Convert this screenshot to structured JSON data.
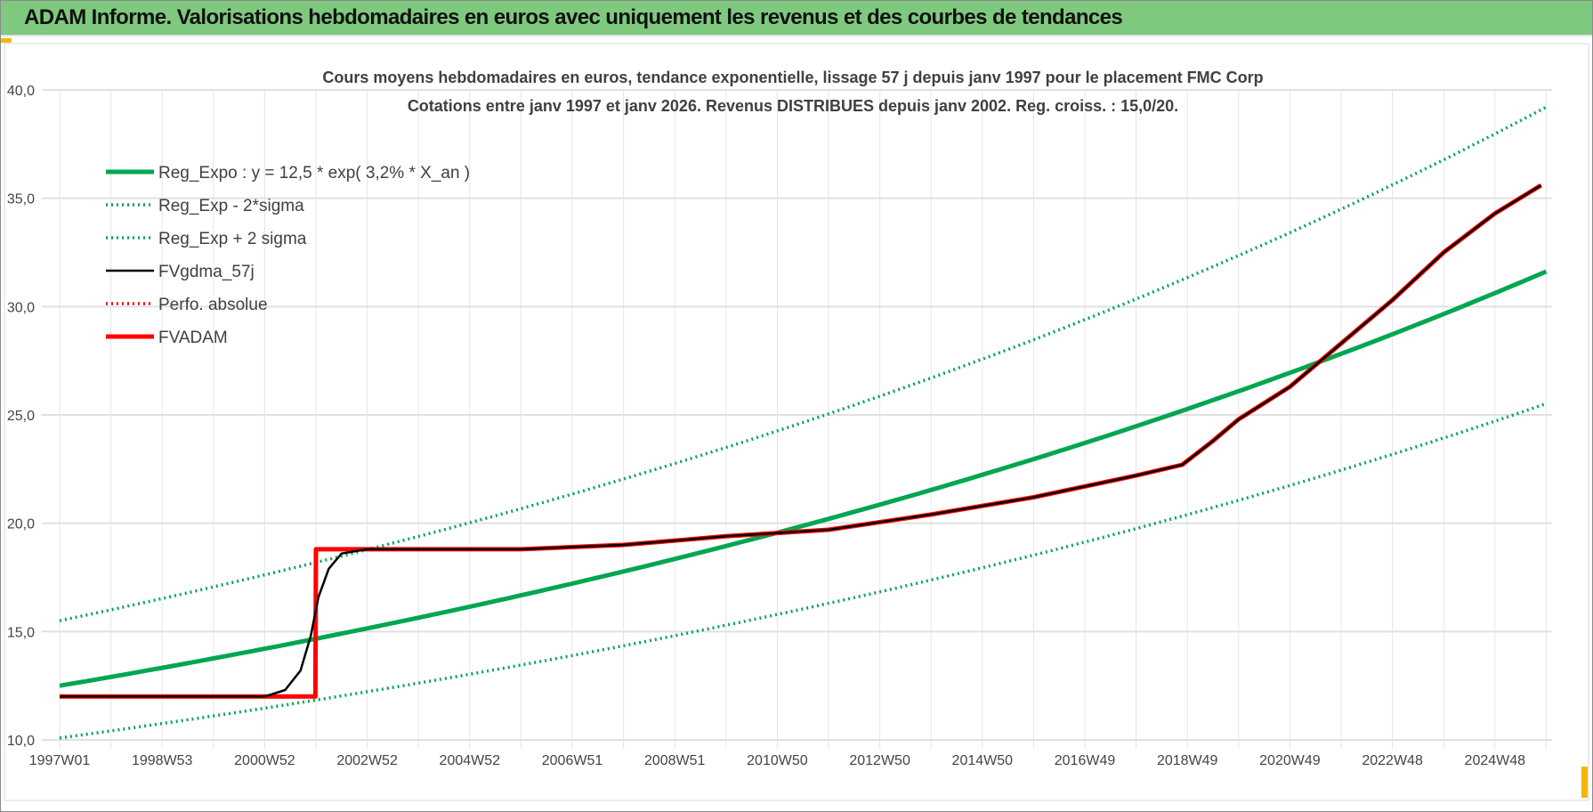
{
  "header": {
    "title": "ADAM Informe. Valorisations hebdomadaires en euros avec uniquement les revenus et des courbes de tendances"
  },
  "chart_data": {
    "type": "line",
    "title": [
      "Cours moyens hebdomadaires en euros, tendance exponentielle, lissage 57 j depuis janv 1997 pour le placement FMC Corp",
      "Cotations entre janv 1997 et janv 2026. Revenus DISTRIBUES depuis janv 2002. Reg. croiss. : 15,0/20."
    ],
    "xlabel": "",
    "ylabel": "",
    "xlim": [
      1997,
      2026
    ],
    "ylim": [
      10,
      40
    ],
    "y_ticks": [
      "10,0",
      "15,0",
      "20,0",
      "25,0",
      "30,0",
      "35,0",
      "40,0"
    ],
    "x_ticks": [
      "1997W01",
      "1998W53",
      "2000W52",
      "2002W52",
      "2004W52",
      "2006W51",
      "2008W51",
      "2010W50",
      "2012W50",
      "2014W50",
      "2016W49",
      "2018W49",
      "2020W49",
      "2022W48",
      "2024W48"
    ],
    "grid": true,
    "legend_position": "top-left",
    "regression": {
      "a": 12.5,
      "rate": 0.032,
      "upper_factor": 1.24,
      "lower_factor": 0.807
    },
    "series": [
      {
        "name": "Reg_Expo : y = 12,5 * exp( 3,2% *  X_an )",
        "color": "#00a651",
        "style": "solid-thick",
        "kind": "reg"
      },
      {
        "name": "Reg_Exp - 2*sigma",
        "color": "#00a651",
        "style": "dotted",
        "kind": "upper"
      },
      {
        "name": "Reg_Exp + 2 sigma",
        "color": "#00a651",
        "style": "dotted",
        "kind": "lower"
      },
      {
        "name": "FVgdma_57j",
        "color": "#000000",
        "style": "solid",
        "points": [
          [
            1997,
            12
          ],
          [
            2001,
            12
          ],
          [
            2001.4,
            12.3
          ],
          [
            2001.7,
            13.2
          ],
          [
            2001.9,
            14.8
          ],
          [
            2002.05,
            16.6
          ],
          [
            2002.25,
            17.9
          ],
          [
            2002.5,
            18.6
          ],
          [
            2003,
            18.8
          ],
          [
            2006,
            18.8
          ],
          [
            2008,
            19.0
          ],
          [
            2010,
            19.4
          ],
          [
            2012,
            19.7
          ],
          [
            2014,
            20.4
          ],
          [
            2016,
            21.2
          ],
          [
            2018,
            22.2
          ],
          [
            2018.9,
            22.7
          ],
          [
            2019.5,
            23.8
          ],
          [
            2020,
            24.8
          ],
          [
            2021,
            26.3
          ],
          [
            2022,
            28.3
          ],
          [
            2023,
            30.3
          ],
          [
            2024,
            32.5
          ],
          [
            2025,
            34.3
          ],
          [
            2025.9,
            35.6
          ]
        ]
      },
      {
        "name": "Perfo. absolue",
        "color": "#ff0000",
        "style": "dotted",
        "points": []
      },
      {
        "name": "FVADAM",
        "color": "#ff0000",
        "style": "solid-thick",
        "points": [
          [
            1997,
            12
          ],
          [
            2001.99,
            12
          ],
          [
            2002,
            18.8
          ],
          [
            2006,
            18.8
          ],
          [
            2008,
            19.0
          ],
          [
            2010,
            19.4
          ],
          [
            2012,
            19.7
          ],
          [
            2014,
            20.4
          ],
          [
            2016,
            21.2
          ],
          [
            2018,
            22.2
          ],
          [
            2018.9,
            22.7
          ],
          [
            2019.5,
            23.8
          ],
          [
            2020,
            24.8
          ],
          [
            2021,
            26.3
          ],
          [
            2022,
            28.3
          ],
          [
            2023,
            30.3
          ],
          [
            2024,
            32.5
          ],
          [
            2025,
            34.3
          ],
          [
            2025.9,
            35.6
          ]
        ]
      }
    ]
  }
}
